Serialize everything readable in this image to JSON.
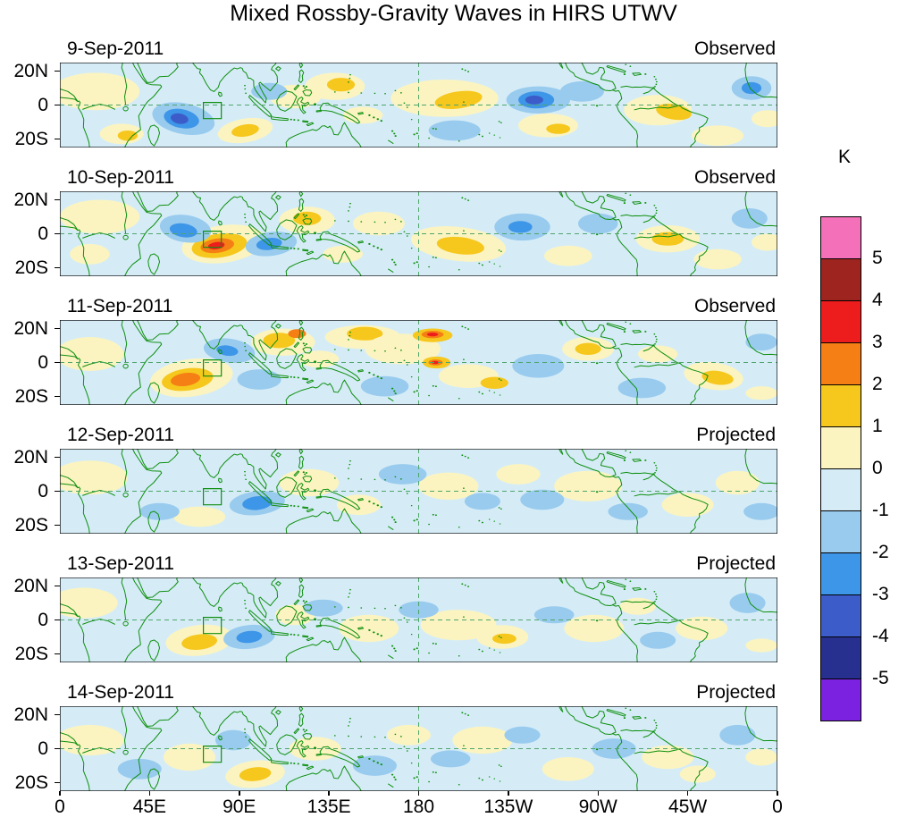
{
  "title": "Mixed Rossby-Gravity Waves in HIRS UTWV",
  "colorbar": {
    "unit": "K",
    "tick_labels": [
      "5",
      "4",
      "3",
      "2",
      "1",
      "0",
      "-1",
      "-2",
      "-3",
      "-4",
      "-5"
    ],
    "colors_top_to_bottom": [
      "#F470B8",
      "#9E2420",
      "#EE1D1D",
      "#F57E15",
      "#F6C71C",
      "#FBF4C0",
      "#D5ECF7",
      "#99CBEE",
      "#3E96E8",
      "#3C5CC9",
      "#27308F",
      "#7A22E0"
    ]
  },
  "axes": {
    "lon_tick_labels": [
      "0",
      "45E",
      "90E",
      "135E",
      "180",
      "135W",
      "90W",
      "45W",
      "0"
    ],
    "lon_tick_values": [
      0,
      45,
      90,
      135,
      180,
      225,
      270,
      315,
      360
    ],
    "lat_tick_labels": [
      "20N",
      "0",
      "20S"
    ],
    "lat_tick_values": [
      20,
      0,
      -20
    ]
  },
  "chart_data": {
    "type": "heatmap",
    "title": "Mixed Rossby-Gravity Waves in HIRS UTWV",
    "units": "K",
    "description": "Six daily tropical-band maps (20S-20N, 0-360E) of mixed Rossby-gravity wave anomalies in HIRS upper-tropospheric water vapor; first three panels observed, last three projected.",
    "lon_range": [
      0,
      360
    ],
    "lat_range": [
      -25,
      25
    ],
    "contour_levels": [
      -5,
      -4,
      -3,
      -2,
      -1,
      0,
      1,
      2,
      3,
      4,
      5
    ],
    "base_level": -1,
    "level_colors": {
      "0": "#FBF4C0",
      "1": "#F6C71C",
      "2": "#F57E15",
      "3": "#EE1D1D",
      "4": "#9E2420",
      "5": "#F470B8",
      "-1": "#D5ECF7",
      "-2": "#99CBEE",
      "-3": "#3E96E8",
      "-4": "#3C5CC9",
      "-5": "#27308F",
      "-6": "#7A22E0"
    },
    "target_region_box": {
      "lon_min": 72,
      "lon_max": 81,
      "lat_min": -8,
      "lat_max": 1.5
    },
    "anomaly_fields": [
      "lon_deg_east",
      "lat_deg",
      "radius_lon_deg",
      "radius_lat_deg",
      "contour_level",
      "rotation_deg"
    ],
    "panels": [
      {
        "date": "9-Sep-2011",
        "label": "Observed",
        "anomalies": [
          [
            18,
            8,
            22,
            11,
            0,
            0
          ],
          [
            31,
            -17,
            11,
            6,
            0,
            0
          ],
          [
            34,
            -18,
            5,
            3,
            1,
            0
          ],
          [
            93,
            -15,
            14,
            7,
            0,
            -12
          ],
          [
            93,
            -15,
            7,
            3.5,
            1,
            -12
          ],
          [
            118,
            5,
            13,
            7,
            0,
            0
          ],
          [
            138,
            11,
            15,
            8,
            0,
            0
          ],
          [
            141,
            12,
            7,
            4,
            1,
            0
          ],
          [
            152,
            -6,
            10,
            5,
            0,
            0
          ],
          [
            193,
            4,
            27,
            11,
            0,
            0
          ],
          [
            200,
            3,
            12,
            5,
            1,
            -10
          ],
          [
            245,
            -12,
            15,
            7,
            0,
            0
          ],
          [
            250,
            -14,
            6,
            3,
            1,
            0
          ],
          [
            300,
            -3,
            17,
            9,
            0,
            0
          ],
          [
            308,
            -4,
            9,
            4.5,
            1,
            12
          ],
          [
            330,
            -18,
            13,
            6,
            0,
            0
          ],
          [
            355,
            -8,
            8,
            5,
            0,
            0
          ],
          [
            62,
            -8,
            16,
            9,
            -2,
            15
          ],
          [
            61,
            -8,
            9,
            5.5,
            -3,
            15
          ],
          [
            60,
            -8,
            4.5,
            3,
            -4,
            15
          ],
          [
            105,
            8,
            9,
            5,
            -2,
            0
          ],
          [
            198,
            -15,
            13,
            6,
            -2,
            0
          ],
          [
            240,
            3,
            16,
            8,
            -2,
            0
          ],
          [
            239,
            3,
            9,
            5,
            -3,
            0
          ],
          [
            238,
            3,
            4.5,
            2.6,
            -4,
            0
          ],
          [
            262,
            8,
            11,
            6,
            -2,
            0
          ],
          [
            347,
            10,
            10,
            7,
            -2,
            0
          ],
          [
            347,
            10,
            5,
            3.5,
            -3,
            0
          ]
        ]
      },
      {
        "date": "10-Sep-2011",
        "label": "Observed",
        "anomalies": [
          [
            20,
            10,
            20,
            10,
            0,
            0
          ],
          [
            15,
            -12,
            10,
            6,
            0,
            0
          ],
          [
            82,
            -6,
            21,
            11,
            0,
            -10
          ],
          [
            80,
            -7,
            14,
            7,
            1,
            -10
          ],
          [
            79,
            -7,
            8.5,
            4.2,
            2,
            -10
          ],
          [
            78.5,
            -7,
            4.2,
            2.1,
            3,
            -10
          ],
          [
            124,
            8,
            14,
            8,
            0,
            0
          ],
          [
            124,
            9,
            7,
            4,
            1,
            0
          ],
          [
            142,
            -12,
            10,
            5,
            0,
            0
          ],
          [
            160,
            6,
            13,
            7,
            0,
            0
          ],
          [
            200,
            -6,
            24,
            10,
            0,
            8
          ],
          [
            201,
            -7,
            12,
            5,
            1,
            8
          ],
          [
            255,
            -13,
            12,
            6,
            0,
            0
          ],
          [
            305,
            -3,
            16,
            8,
            0,
            0
          ],
          [
            305,
            -3,
            8,
            4,
            1,
            0
          ],
          [
            330,
            -15,
            12,
            6,
            0,
            0
          ],
          [
            355,
            -5,
            8,
            5,
            0,
            0
          ],
          [
            63,
            3,
            13,
            8,
            -2,
            12
          ],
          [
            62,
            2,
            7,
            4,
            -3,
            12
          ],
          [
            106,
            -6,
            13,
            7,
            -2,
            -10
          ],
          [
            105,
            -6,
            6.5,
            3.5,
            -3,
            -10
          ],
          [
            232,
            4,
            14,
            8,
            -2,
            0
          ],
          [
            231,
            4,
            6,
            3.5,
            -3,
            0
          ],
          [
            270,
            6,
            10,
            6,
            -2,
            0
          ],
          [
            346,
            9,
            9,
            6,
            -2,
            0
          ]
        ]
      },
      {
        "date": "11-Sep-2011",
        "label": "Observed",
        "anomalies": [
          [
            15,
            5,
            17,
            10,
            0,
            0
          ],
          [
            66,
            -9,
            21,
            11,
            0,
            -10
          ],
          [
            64,
            -10,
            13,
            6.5,
            1,
            -10
          ],
          [
            63,
            -10,
            7.5,
            3.8,
            2,
            -10
          ],
          [
            112,
            12,
            16,
            8,
            0,
            0
          ],
          [
            110,
            13,
            8,
            4.5,
            1,
            0
          ],
          [
            119,
            17,
            4.5,
            2.6,
            2,
            0
          ],
          [
            130,
            2,
            10,
            5,
            0,
            0
          ],
          [
            152,
            15,
            19,
            7,
            0,
            0
          ],
          [
            153,
            17,
            9,
            4,
            1,
            0
          ],
          [
            172,
            8,
            19,
            9,
            0,
            0
          ],
          [
            187,
            16,
            10,
            4,
            1,
            0
          ],
          [
            187,
            16.5,
            5.5,
            2.2,
            2,
            0
          ],
          [
            187,
            16.5,
            2.8,
            1.1,
            3,
            0
          ],
          [
            189,
            0,
            7,
            3.5,
            1,
            0
          ],
          [
            188.5,
            0,
            3.6,
            1.8,
            2,
            0
          ],
          [
            188.3,
            0,
            1.8,
            0.9,
            3,
            0
          ],
          [
            205,
            -8,
            15,
            7,
            0,
            0
          ],
          [
            218,
            -12,
            7,
            3.5,
            1,
            0
          ],
          [
            265,
            8,
            13,
            7,
            0,
            0
          ],
          [
            265,
            8,
            6.5,
            3.5,
            1,
            0
          ],
          [
            300,
            5,
            10,
            5,
            0,
            0
          ],
          [
            328,
            -8,
            15,
            8,
            0,
            10
          ],
          [
            330,
            -9,
            8,
            4,
            1,
            10
          ],
          [
            352,
            -18,
            8,
            4,
            0,
            0
          ],
          [
            85,
            7,
            13,
            7,
            -2,
            10
          ],
          [
            84,
            7,
            5.5,
            3,
            -3,
            10
          ],
          [
            100,
            -10,
            11,
            6,
            -2,
            0
          ],
          [
            163,
            -14,
            12,
            6,
            -2,
            0
          ],
          [
            240,
            -2,
            13,
            7,
            -2,
            0
          ],
          [
            292,
            -15,
            12,
            6,
            -2,
            0
          ],
          [
            352,
            12,
            8,
            5,
            -2,
            0
          ]
        ]
      },
      {
        "date": "12-Sep-2011",
        "label": "Projected",
        "anomalies": [
          [
            15,
            8,
            19,
            10,
            0,
            0
          ],
          [
            70,
            -15,
            13,
            6,
            0,
            0
          ],
          [
            125,
            5,
            15,
            8,
            0,
            0
          ],
          [
            150,
            -8,
            11,
            6,
            0,
            0
          ],
          [
            195,
            3,
            15,
            8,
            0,
            0
          ],
          [
            230,
            10,
            11,
            6,
            0,
            0
          ],
          [
            265,
            3,
            17,
            9,
            0,
            0
          ],
          [
            315,
            -8,
            13,
            7,
            0,
            0
          ],
          [
            340,
            5,
            11,
            7,
            0,
            0
          ],
          [
            50,
            -12,
            10,
            5,
            -2,
            0
          ],
          [
            99,
            -7,
            14,
            7,
            -2,
            -8
          ],
          [
            99,
            -7,
            7.5,
            4,
            -3,
            -8
          ],
          [
            172,
            10,
            12,
            6,
            -2,
            0
          ],
          [
            212,
            -6,
            9,
            5,
            -2,
            0
          ],
          [
            242,
            -5,
            11,
            6,
            -2,
            0
          ],
          [
            285,
            -12,
            10,
            5,
            -2,
            0
          ],
          [
            352,
            -12,
            9,
            5,
            -2,
            0
          ]
        ]
      },
      {
        "date": "13-Sep-2011",
        "label": "Projected",
        "anomalies": [
          [
            12,
            10,
            17,
            9,
            0,
            0
          ],
          [
            70,
            -12,
            17,
            9,
            0,
            -8
          ],
          [
            70,
            -13,
            9,
            4.5,
            1,
            -8
          ],
          [
            118,
            3,
            10,
            6,
            0,
            0
          ],
          [
            155,
            -5,
            15,
            8,
            0,
            0
          ],
          [
            200,
            -3,
            19,
            9,
            0,
            0
          ],
          [
            222,
            -10,
            13,
            7,
            0,
            0
          ],
          [
            223,
            -11,
            6,
            3,
            1,
            0
          ],
          [
            268,
            -5,
            15,
            8,
            0,
            0
          ],
          [
            290,
            8,
            9,
            5,
            0,
            0
          ],
          [
            322,
            -5,
            13,
            7,
            0,
            0
          ],
          [
            352,
            -15,
            8,
            4,
            0,
            0
          ],
          [
            95,
            -10,
            13,
            7,
            -2,
            -8
          ],
          [
            95,
            -10,
            6.5,
            3.5,
            -3,
            -8
          ],
          [
            132,
            7,
            10,
            5,
            -2,
            0
          ],
          [
            180,
            6,
            10,
            5,
            -2,
            0
          ],
          [
            248,
            3,
            10,
            5,
            -2,
            0
          ],
          [
            300,
            -12,
            9,
            5,
            -2,
            0
          ],
          [
            345,
            10,
            9,
            6,
            -2,
            0
          ]
        ]
      },
      {
        "date": "14-Sep-2011",
        "label": "Projected",
        "anomalies": [
          [
            15,
            5,
            17,
            9,
            0,
            0
          ],
          [
            65,
            -5,
            13,
            8,
            0,
            0
          ],
          [
            98,
            -15,
            15,
            8,
            0,
            -8
          ],
          [
            98,
            -15,
            8,
            4,
            1,
            -8
          ],
          [
            128,
            0,
            13,
            7,
            0,
            0
          ],
          [
            175,
            8,
            11,
            6,
            0,
            0
          ],
          [
            212,
            5,
            15,
            8,
            0,
            0
          ],
          [
            255,
            -12,
            13,
            7,
            0,
            0
          ],
          [
            305,
            -5,
            13,
            7,
            0,
            0
          ],
          [
            320,
            -15,
            9,
            5,
            0,
            0
          ],
          [
            352,
            -5,
            8,
            5,
            0,
            0
          ],
          [
            40,
            -12,
            11,
            6,
            -2,
            0
          ],
          [
            87,
            5,
            9,
            6,
            -2,
            0
          ],
          [
            158,
            -10,
            11,
            6,
            -2,
            0
          ],
          [
            196,
            -6,
            10,
            5,
            -2,
            0
          ],
          [
            232,
            8,
            9,
            5,
            -2,
            0
          ],
          [
            278,
            0,
            11,
            6,
            -2,
            0
          ],
          [
            340,
            8,
            9,
            6,
            -2,
            0
          ]
        ]
      }
    ]
  }
}
